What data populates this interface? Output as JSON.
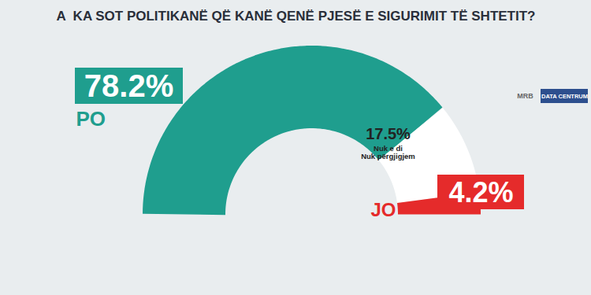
{
  "chart_data": {
    "type": "donut",
    "title": "A  KA SOT POLITIKANË QË KANË QENË PJESË E SIGURIMIT TË SHTETIT?",
    "categories": [
      "PO",
      "Nuk e di\nNuk përgjigjem",
      "JO"
    ],
    "values": [
      78.2,
      17.5,
      4.2
    ],
    "value_labels": [
      "78.2%",
      "17.5%",
      "4.2%"
    ],
    "colors": [
      "#1f9e8e",
      "#ffffff",
      "#e52b2b"
    ],
    "data_labels": true,
    "annotations": [
      "MRB",
      "DATA CENTRUM"
    ]
  }
}
